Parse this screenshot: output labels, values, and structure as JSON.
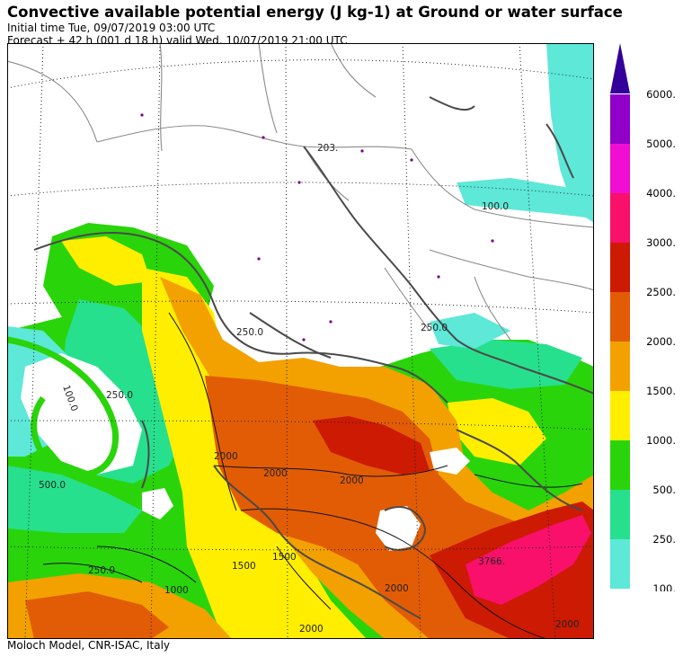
{
  "header": {
    "title": "Convective available potential energy (J kg-1) at Ground or water surface",
    "initial_time": "Initial time  Tue, 09/07/2019  03:00 UTC",
    "forecast": "Forecast  +  42 h  (001 d 18 h)  valid Wed, 10/07/2019 21:00 UTC"
  },
  "footer": {
    "credit": "Moloch Model, CNR-ISAC, Italy"
  },
  "legend": {
    "labels": [
      "100.",
      "250.",
      "500.",
      "1000.",
      "1500.",
      "2000.",
      "2500.",
      "3000.",
      "4000.",
      "5000.",
      "6000."
    ],
    "colors": [
      "#5de8d8",
      "#27e08e",
      "#2ad40a",
      "#ffee00",
      "#f2a100",
      "#e25c05",
      "#cc1a03",
      "#f8106a",
      "#f00ed2",
      "#9000c8",
      "#330099"
    ]
  },
  "map": {
    "contour_labels": [
      "203.",
      "100.0",
      "250.0",
      "250.0",
      "100.0",
      "250.0",
      "2000",
      "2000",
      "3766.",
      "2000",
      "1500",
      "1500",
      "2000",
      "2000",
      "500.0",
      "250.0",
      "1000",
      "2000"
    ],
    "colors": {
      "land": "#ffffff",
      "border": "#8a8a8a",
      "coast": "#4a4a4a",
      "contour": "#111111",
      "graticule": "#222222"
    }
  }
}
